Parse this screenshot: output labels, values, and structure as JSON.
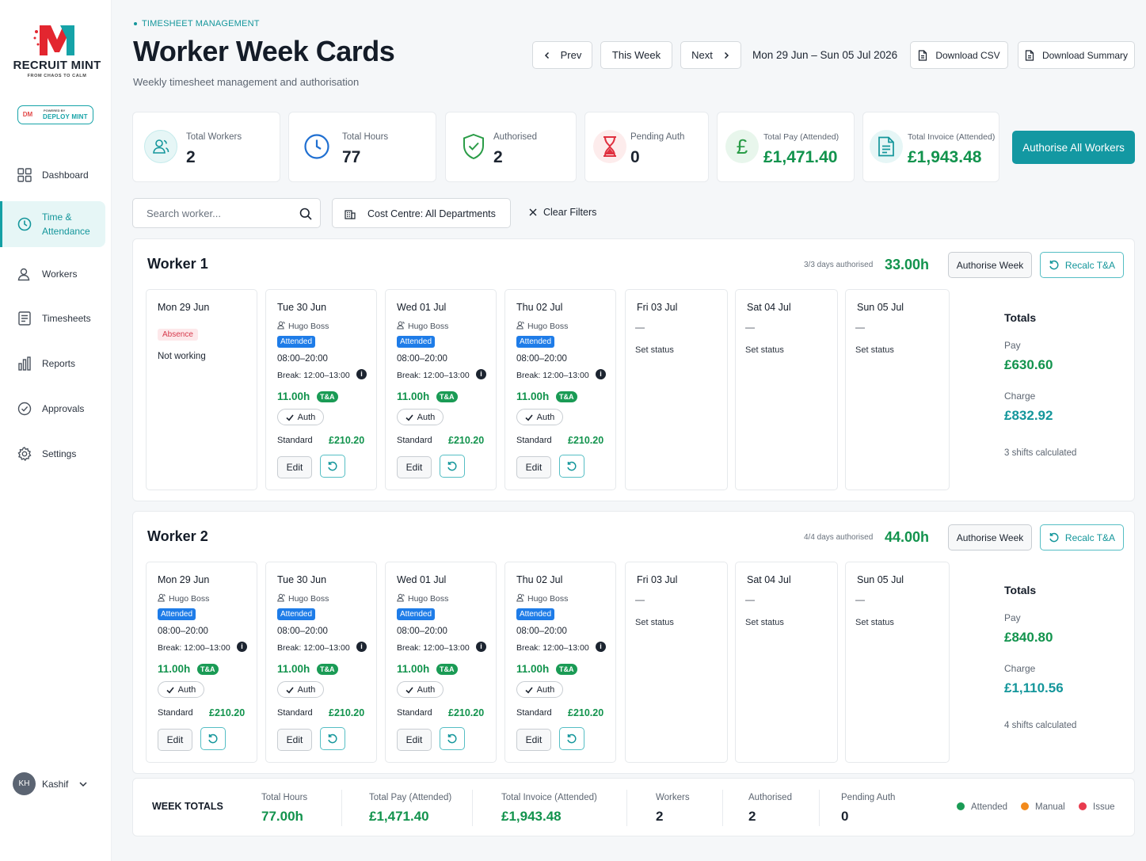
{
  "brand": {
    "name": "RECRUIT MINT",
    "tagline": "FROM CHAOS TO CALM",
    "powered_by": "POWERED BY",
    "deploy": "DEPLOY MINT",
    "deploy_mark": "DM"
  },
  "nav": {
    "items": [
      {
        "label": "Dashboard",
        "icon": "grid-icon"
      },
      {
        "label": "Time & Attendance",
        "icon": "clock-icon"
      },
      {
        "label": "Workers",
        "icon": "users-icon"
      },
      {
        "label": "Timesheets",
        "icon": "list-icon"
      },
      {
        "label": "Reports",
        "icon": "bar-chart-icon"
      },
      {
        "label": "Approvals",
        "icon": "check-circle-icon"
      },
      {
        "label": "Settings",
        "icon": "gear-icon"
      }
    ],
    "active": "Time & Attendance"
  },
  "user": {
    "initials": "KH",
    "name": "Kashif"
  },
  "header": {
    "breadcrumb": "TIMESHEET MANAGEMENT",
    "title": "Worker Week Cards",
    "subtitle": "Weekly timesheet management and authorisation",
    "prev": "Prev",
    "this_week": "This Week",
    "next": "Next",
    "date_range": "Mon 29 Jun – Sun 05 Jul 2026",
    "download_csv": "Download CSV",
    "download_summary": "Download Summary"
  },
  "stats": {
    "total_workers": {
      "label": "Total Workers",
      "value": "2"
    },
    "total_hours": {
      "label": "Total Hours",
      "value": "77"
    },
    "authorised": {
      "label": "Authorised",
      "value": "2"
    },
    "pending": {
      "label": "Pending Auth",
      "value": "0"
    },
    "total_pay": {
      "label": "Total Pay (Attended)",
      "value": "£1,471.40"
    },
    "total_invoice": {
      "label": "Total Invoice (Attended)",
      "value": "£1,943.48"
    },
    "authorise_all": "Authorise All Workers"
  },
  "filters": {
    "search_placeholder": "Search worker...",
    "cost_centre": "Cost Centre: All Departments",
    "clear": "Clear Filters"
  },
  "labels": {
    "authorise_week": "Authorise Week",
    "recalc": "Recalc T&A",
    "totals": "Totals",
    "pay": "Pay",
    "charge": "Charge",
    "edit": "Edit",
    "auth": "Auth",
    "ta": "T&A",
    "standard": "Standard",
    "set_status": "Set status",
    "dash": "—"
  },
  "workers": [
    {
      "name": "Worker 1",
      "days_authorised": "3/3 days authorised",
      "hours": "33.00h",
      "days": [
        {
          "date": "Mon 29 Jun",
          "kind": "absence",
          "badge": "Absence",
          "note": "Not working"
        },
        {
          "date": "Tue 30 Jun",
          "kind": "shift",
          "client": "Hugo Boss",
          "badge": "Attended",
          "time": "08:00–20:00",
          "break": "Break: 12:00–13:00",
          "hours": "11.00h",
          "amount": "£210.20"
        },
        {
          "date": "Wed 01 Jul",
          "kind": "shift",
          "client": "Hugo Boss",
          "badge": "Attended",
          "time": "08:00–20:00",
          "break": "Break: 12:00–13:00",
          "hours": "11.00h",
          "amount": "£210.20"
        },
        {
          "date": "Thu 02 Jul",
          "kind": "shift",
          "client": "Hugo Boss",
          "badge": "Attended",
          "time": "08:00–20:00",
          "break": "Break: 12:00–13:00",
          "hours": "11.00h",
          "amount": "£210.20"
        },
        {
          "date": "Fri 03 Jul",
          "kind": "empty"
        },
        {
          "date": "Sat 04 Jul",
          "kind": "empty"
        },
        {
          "date": "Sun 05 Jul",
          "kind": "empty"
        }
      ],
      "pay": "£630.60",
      "charge": "£832.92",
      "shifts": "3 shifts calculated"
    },
    {
      "name": "Worker 2",
      "days_authorised": "4/4 days authorised",
      "hours": "44.00h",
      "days": [
        {
          "date": "Mon 29 Jun",
          "kind": "shift",
          "client": "Hugo Boss",
          "badge": "Attended",
          "time": "08:00–20:00",
          "break": "Break: 12:00–13:00",
          "hours": "11.00h",
          "amount": "£210.20"
        },
        {
          "date": "Tue 30 Jun",
          "kind": "shift",
          "client": "Hugo Boss",
          "badge": "Attended",
          "time": "08:00–20:00",
          "break": "Break: 12:00–13:00",
          "hours": "11.00h",
          "amount": "£210.20"
        },
        {
          "date": "Wed 01 Jul",
          "kind": "shift",
          "client": "Hugo Boss",
          "badge": "Attended",
          "time": "08:00–20:00",
          "break": "Break: 12:00–13:00",
          "hours": "11.00h",
          "amount": "£210.20"
        },
        {
          "date": "Thu 02 Jul",
          "kind": "shift",
          "client": "Hugo Boss",
          "badge": "Attended",
          "time": "08:00–20:00",
          "break": "Break: 12:00–13:00",
          "hours": "11.00h",
          "amount": "£210.20"
        },
        {
          "date": "Fri 03 Jul",
          "kind": "empty"
        },
        {
          "date": "Sat 04 Jul",
          "kind": "empty"
        },
        {
          "date": "Sun 05 Jul",
          "kind": "empty"
        }
      ],
      "pay": "£840.80",
      "charge": "£1,110.56",
      "shifts": "4 shifts calculated"
    }
  ],
  "week_totals": {
    "label": "WEEK TOTALS",
    "total_hours": {
      "label": "Total Hours",
      "value": "77.00h"
    },
    "total_pay": {
      "label": "Total Pay (Attended)",
      "value": "£1,471.40"
    },
    "total_invoice": {
      "label": "Total Invoice (Attended)",
      "value": "£1,943.48"
    },
    "workers": {
      "label": "Workers",
      "value": "2"
    },
    "authorised": {
      "label": "Authorised",
      "value": "2"
    },
    "pending": {
      "label": "Pending Auth",
      "value": "0"
    }
  },
  "legend": [
    {
      "label": "Attended",
      "color": "#1a9b55"
    },
    {
      "label": "Manual",
      "color": "#f28a1c"
    },
    {
      "label": "Issue",
      "color": "#e83b4e"
    }
  ],
  "colors": {
    "accent": "#1398a2",
    "green": "#12934d",
    "attended_badge": "#1e7ce8",
    "absence": "#d63a4c"
  }
}
